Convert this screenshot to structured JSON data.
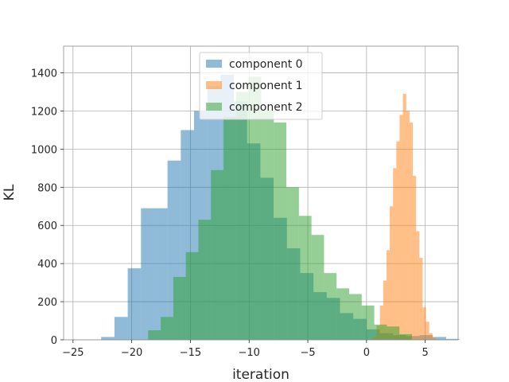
{
  "chart_data": {
    "type": "bar",
    "xlabel": "iteration",
    "ylabel": "KL",
    "xlim": [
      -25.8,
      7.8
    ],
    "ylim": [
      0,
      1540
    ],
    "xticks": [
      -25,
      -20,
      -15,
      -10,
      -5,
      0,
      5
    ],
    "yticks": [
      0,
      200,
      400,
      600,
      800,
      1000,
      1200,
      1400
    ],
    "grid": true,
    "legend_position": "top-center",
    "series": [
      {
        "name": "component 0",
        "color": "#1f77b4",
        "opacity": 0.5,
        "bin_start": -22.6,
        "bin_width": 1.13,
        "values": [
          15,
          120,
          375,
          690,
          690,
          940,
          1100,
          1200,
          1330,
          1390,
          1250,
          1030,
          850,
          640,
          480,
          350,
          250,
          220,
          140,
          110,
          55,
          35,
          25,
          20,
          25,
          15,
          5
        ]
      },
      {
        "name": "component 1",
        "color": "#ff7f0e",
        "opacity": 0.5,
        "bin_start": 0.3,
        "bin_width": 0.28,
        "values": [
          5,
          15,
          75,
          180,
          310,
          470,
          700,
          900,
          1040,
          1180,
          1290,
          1200,
          1140,
          860,
          570,
          430,
          170,
          95,
          35,
          10,
          3
        ]
      },
      {
        "name": "component 2",
        "color": "#2ca02c",
        "opacity": 0.5,
        "bin_start": -18.6,
        "bin_width": 1.07,
        "values": [
          50,
          120,
          330,
          460,
          630,
          890,
          1170,
          1300,
          1380,
          1200,
          1140,
          800,
          650,
          550,
          350,
          270,
          240,
          180,
          80,
          70,
          30
        ]
      }
    ]
  }
}
